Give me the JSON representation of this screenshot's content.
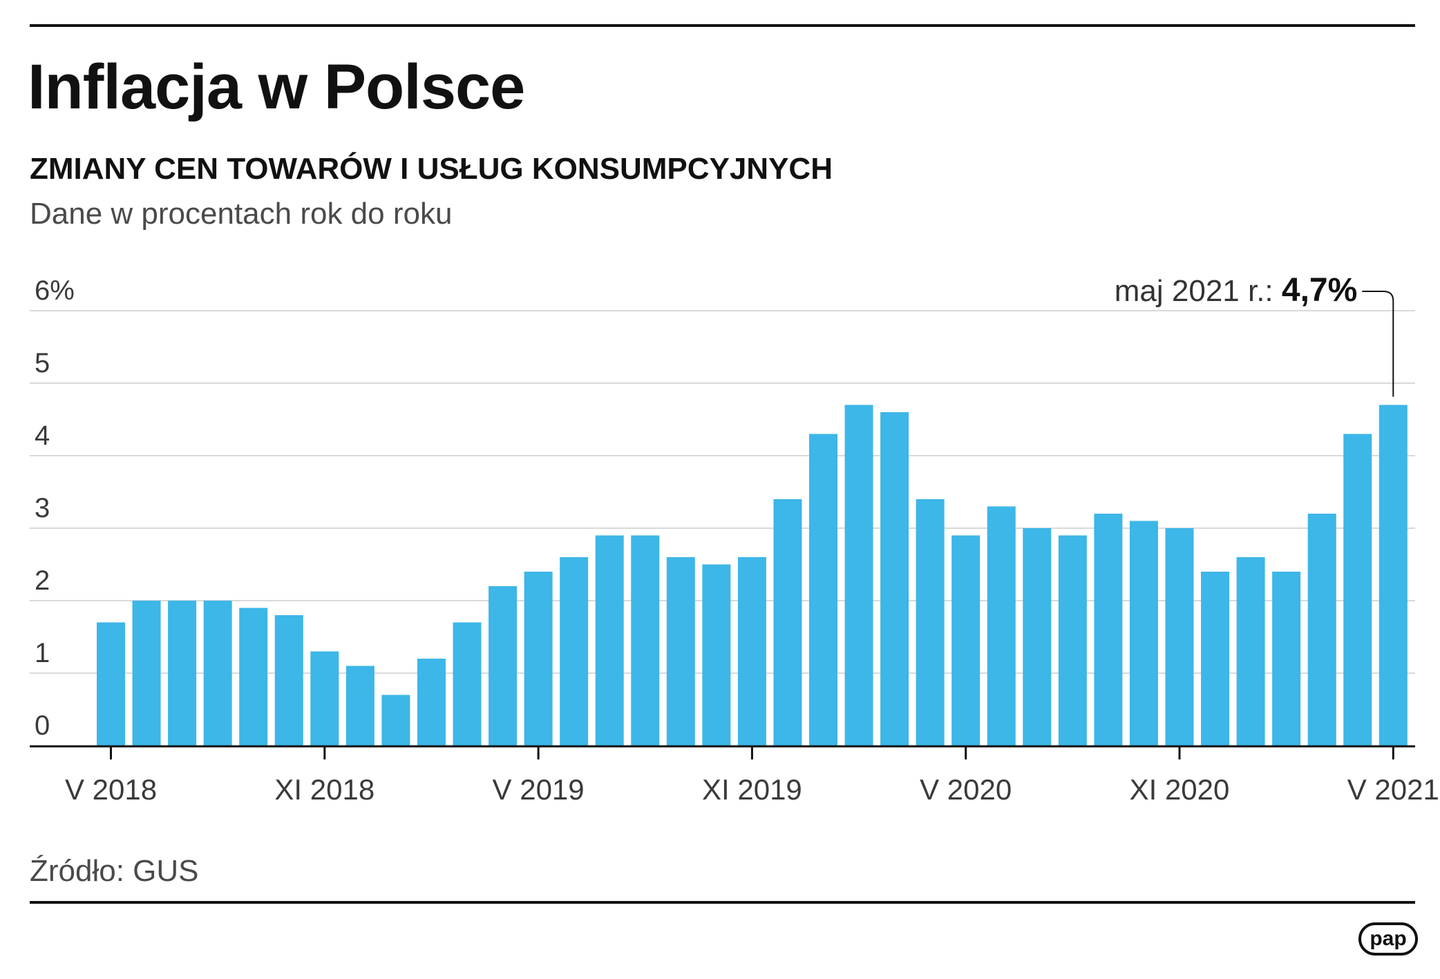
{
  "title": "Inflacja w Polsce",
  "subtitle": "ZMIANY CEN TOWARÓW I USŁUG KONSUMPCYJNYCH",
  "unit_note": "Dane w procentach rok do roku",
  "source": "Źródło: GUS",
  "logo_text": "pap",
  "colors": {
    "bar": "#3db6e8",
    "grid": "#d9d9d9",
    "axis": "#111111",
    "text": "#111111"
  },
  "annotation": {
    "label": "maj 2021 r.: ",
    "value": "4,7%"
  },
  "chart_data": {
    "type": "bar",
    "ylim": [
      0,
      6
    ],
    "yticks": [
      "0",
      "1",
      "2",
      "3",
      "4",
      "5",
      "6%"
    ],
    "grid": true,
    "x_tick_labels": [
      {
        "index": 0,
        "label": "V 2018"
      },
      {
        "index": 6,
        "label": "XI 2018"
      },
      {
        "index": 12,
        "label": "V 2019"
      },
      {
        "index": 18,
        "label": "XI 2019"
      },
      {
        "index": 24,
        "label": "V 2020"
      },
      {
        "index": 30,
        "label": "XI 2020"
      },
      {
        "index": 36,
        "label": "V 2021"
      }
    ],
    "categories": [
      "V 2018",
      "VI 2018",
      "VII 2018",
      "VIII 2018",
      "IX 2018",
      "X 2018",
      "XI 2018",
      "XII 2018",
      "I 2019",
      "II 2019",
      "III 2019",
      "IV 2019",
      "V 2019",
      "VI 2019",
      "VII 2019",
      "VIII 2019",
      "IX 2019",
      "X 2019",
      "XI 2019",
      "XII 2019",
      "I 2020",
      "II 2020",
      "III 2020",
      "IV 2020",
      "V 2020",
      "VI 2020",
      "VII 2020",
      "VIII 2020",
      "IX 2020",
      "X 2020",
      "XI 2020",
      "XII 2020",
      "I 2021",
      "II 2021",
      "III 2021",
      "IV 2021",
      "V 2021"
    ],
    "values": [
      1.7,
      2.0,
      2.0,
      2.0,
      1.9,
      1.8,
      1.3,
      1.1,
      0.7,
      1.2,
      1.7,
      2.2,
      2.4,
      2.6,
      2.9,
      2.9,
      2.6,
      2.5,
      2.6,
      3.4,
      4.3,
      4.7,
      4.6,
      3.4,
      2.9,
      3.3,
      3.0,
      2.9,
      3.2,
      3.1,
      3.0,
      2.4,
      2.6,
      2.4,
      3.2,
      4.3,
      4.7
    ]
  }
}
